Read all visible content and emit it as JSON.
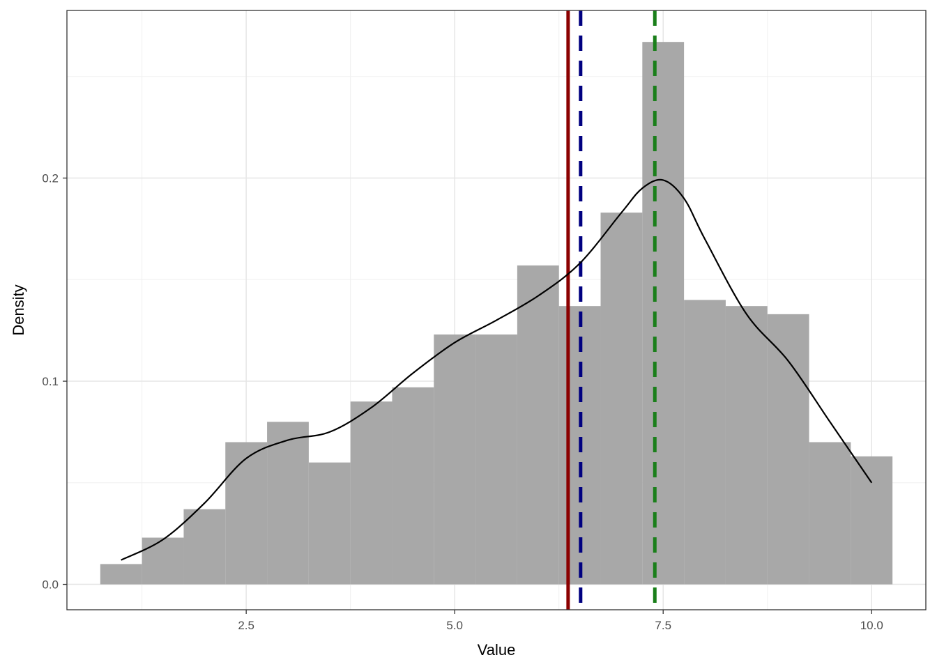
{
  "chart_data": {
    "type": "bar",
    "subtype": "histogram-with-density",
    "title": "",
    "xlabel": "Value",
    "ylabel": "Density",
    "xlim": [
      0.35,
      10.65
    ],
    "ylim": [
      -0.0125,
      0.2825
    ],
    "x_ticks": [
      2.5,
      5.0,
      7.5,
      10.0
    ],
    "x_tick_labels": [
      "2.5",
      "5.0",
      "7.5",
      "10.0"
    ],
    "y_ticks": [
      0.0,
      0.1,
      0.2
    ],
    "y_tick_labels": [
      "0.0",
      "0.1",
      "0.2"
    ],
    "grid": true,
    "legend": "none",
    "bin_width": 0.5,
    "bins": [
      {
        "start": 0.75,
        "end": 1.25,
        "density": 0.01
      },
      {
        "start": 1.25,
        "end": 1.75,
        "density": 0.023
      },
      {
        "start": 1.75,
        "end": 2.25,
        "density": 0.037
      },
      {
        "start": 2.25,
        "end": 2.75,
        "density": 0.07
      },
      {
        "start": 2.75,
        "end": 3.25,
        "density": 0.08
      },
      {
        "start": 3.25,
        "end": 3.75,
        "density": 0.06
      },
      {
        "start": 3.75,
        "end": 4.25,
        "density": 0.09
      },
      {
        "start": 4.25,
        "end": 4.75,
        "density": 0.097
      },
      {
        "start": 4.75,
        "end": 5.25,
        "density": 0.123
      },
      {
        "start": 5.25,
        "end": 5.75,
        "density": 0.123
      },
      {
        "start": 5.75,
        "end": 6.25,
        "density": 0.157
      },
      {
        "start": 6.25,
        "end": 6.75,
        "density": 0.137
      },
      {
        "start": 6.75,
        "end": 7.25,
        "density": 0.183
      },
      {
        "start": 7.25,
        "end": 7.75,
        "density": 0.267
      },
      {
        "start": 7.75,
        "end": 8.25,
        "density": 0.14
      },
      {
        "start": 8.25,
        "end": 8.75,
        "density": 0.137
      },
      {
        "start": 8.75,
        "end": 9.25,
        "density": 0.133
      },
      {
        "start": 9.25,
        "end": 9.75,
        "density": 0.07
      },
      {
        "start": 9.75,
        "end": 10.25,
        "density": 0.063
      }
    ],
    "density_curve": {
      "x": [
        1.0,
        1.5,
        2.0,
        2.5,
        3.0,
        3.5,
        4.0,
        4.5,
        5.0,
        5.5,
        6.0,
        6.5,
        7.0,
        7.25,
        7.5,
        7.75,
        8.0,
        8.5,
        9.0,
        9.5,
        10.0
      ],
      "y": [
        0.012,
        0.022,
        0.04,
        0.062,
        0.071,
        0.075,
        0.087,
        0.104,
        0.119,
        0.13,
        0.142,
        0.158,
        0.183,
        0.195,
        0.199,
        0.19,
        0.17,
        0.133,
        0.11,
        0.08,
        0.05
      ]
    },
    "reference_lines": [
      {
        "x": 6.36,
        "style": "solid",
        "color": "#8b0000"
      },
      {
        "x": 6.51,
        "style": "dashed",
        "color": "#000080"
      },
      {
        "x": 7.4,
        "style": "dashed",
        "color": "#1a7f1a"
      }
    ],
    "colors": {
      "bars": "#a6a6a6",
      "curve": "#000000",
      "grid_major": "#e6e6e6",
      "grid_minor": "#f0f0f0",
      "panel_border": "#333333"
    }
  }
}
